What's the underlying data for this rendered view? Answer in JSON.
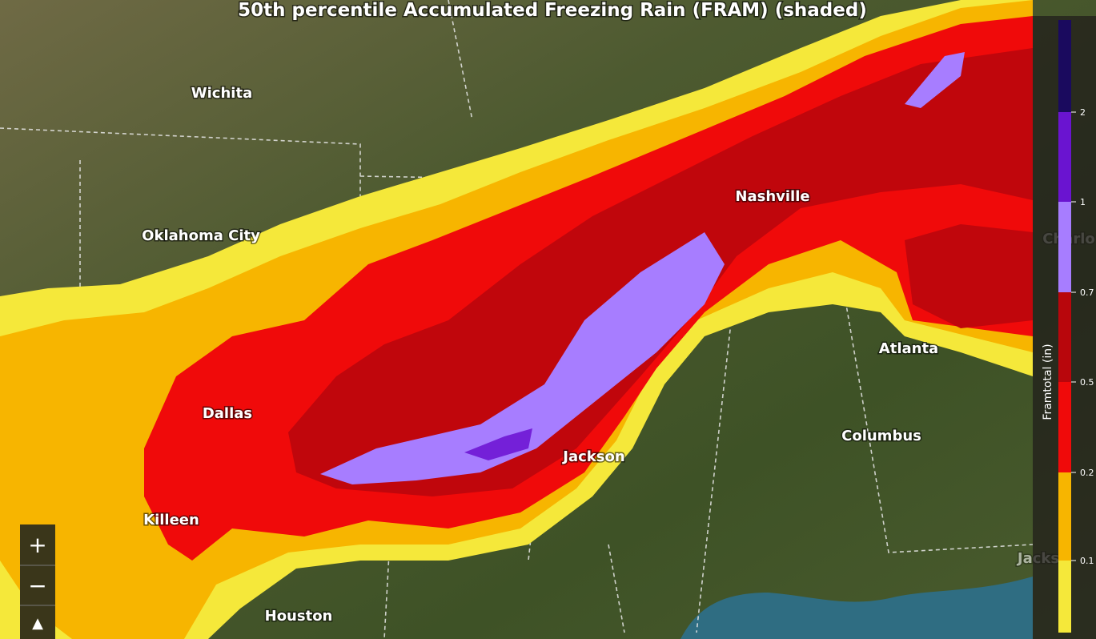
{
  "title": "50th percentile Accumulated Freezing Rain (FRAM) (shaded)",
  "cities": [
    "Wichita",
    "Oklahoma City",
    "Dallas",
    "Killeen",
    "Houston",
    "Jackson",
    "Nashville",
    "Atlanta",
    "Columbus",
    "Charlo",
    "Jacks"
  ],
  "legend": {
    "title": "Framtotal (in)",
    "labels": [
      "0.1",
      "0.2",
      "0.5",
      "0.7",
      "1",
      "2"
    ]
  },
  "zoom": [
    "+",
    "−",
    "▲"
  ]
}
